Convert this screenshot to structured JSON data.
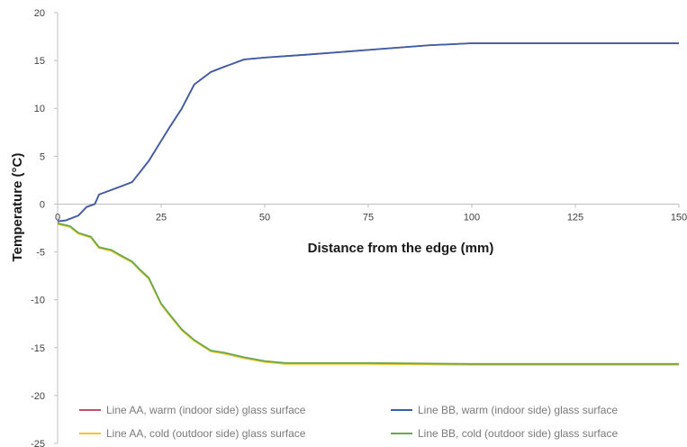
{
  "chart_data": {
    "type": "line",
    "title": "",
    "xlabel": "Distance from the edge (mm)",
    "ylabel": "Temperature (°C)",
    "xlim": [
      0,
      150
    ],
    "ylim": [
      -25,
      20
    ],
    "x_ticks": [
      0,
      25,
      50,
      75,
      100,
      125,
      150
    ],
    "y_ticks": [
      20,
      15,
      10,
      5,
      0,
      -5,
      -10,
      -15,
      -20,
      -25
    ],
    "grid": false,
    "legend_position": "bottom",
    "series": [
      {
        "name": "Line AA, warm (indoor side) glass surface",
        "color": "#c0506a",
        "x": [
          0,
          2,
          5,
          7,
          9,
          10,
          15,
          18,
          20,
          22,
          25,
          27,
          30,
          33,
          37,
          40,
          45,
          50,
          60,
          75,
          90,
          95,
          100,
          125,
          150
        ],
        "y": [
          -1.8,
          -1.7,
          -1.2,
          -0.3,
          0,
          1.0,
          1.8,
          2.3,
          3.4,
          4.5,
          6.6,
          8.0,
          10.0,
          12.5,
          13.8,
          14.3,
          15.1,
          15.3,
          15.6,
          16.1,
          16.6,
          16.7,
          16.8,
          16.8,
          16.8
        ]
      },
      {
        "name": "Line BB, warm (indoor side) glass surface",
        "color": "#3d5fa8",
        "x": [
          0,
          2,
          5,
          7,
          9,
          10,
          15,
          18,
          20,
          22,
          25,
          27,
          30,
          33,
          37,
          40,
          45,
          50,
          60,
          75,
          90,
          95,
          100,
          125,
          150
        ],
        "y": [
          -1.8,
          -1.7,
          -1.2,
          -0.3,
          0,
          1.0,
          1.8,
          2.3,
          3.4,
          4.5,
          6.6,
          8.0,
          10.0,
          12.5,
          13.8,
          14.3,
          15.1,
          15.3,
          15.6,
          16.1,
          16.6,
          16.7,
          16.8,
          16.8,
          16.8
        ]
      },
      {
        "name": "Line AA, cold (outdoor side) glass surface",
        "color": "#f2c62a",
        "x": [
          0,
          3,
          5,
          8,
          10,
          13,
          15,
          18,
          20,
          22,
          25,
          27,
          30,
          33,
          37,
          40,
          45,
          50,
          55,
          60,
          75,
          100,
          125,
          150
        ],
        "y": [
          -2.1,
          -2.4,
          -3.1,
          -3.5,
          -4.6,
          -4.9,
          -5.4,
          -6.1,
          -7.0,
          -7.8,
          -10.5,
          -11.6,
          -13.2,
          -14.3,
          -15.4,
          -15.6,
          -16.1,
          -16.5,
          -16.7,
          -16.7,
          -16.7,
          -16.8,
          -16.8,
          -16.8
        ]
      },
      {
        "name": "Line BB, cold (outdoor side) glass surface",
        "color": "#6aa84f",
        "x": [
          0,
          3,
          5,
          8,
          10,
          13,
          15,
          18,
          20,
          22,
          25,
          27,
          30,
          33,
          37,
          40,
          45,
          50,
          55,
          60,
          75,
          100,
          125,
          150
        ],
        "y": [
          -2.0,
          -2.3,
          -3.0,
          -3.4,
          -4.5,
          -4.8,
          -5.3,
          -6.0,
          -6.9,
          -7.7,
          -10.4,
          -11.5,
          -13.1,
          -14.2,
          -15.3,
          -15.5,
          -16.0,
          -16.4,
          -16.6,
          -16.6,
          -16.6,
          -16.7,
          -16.7,
          -16.7
        ]
      }
    ]
  }
}
